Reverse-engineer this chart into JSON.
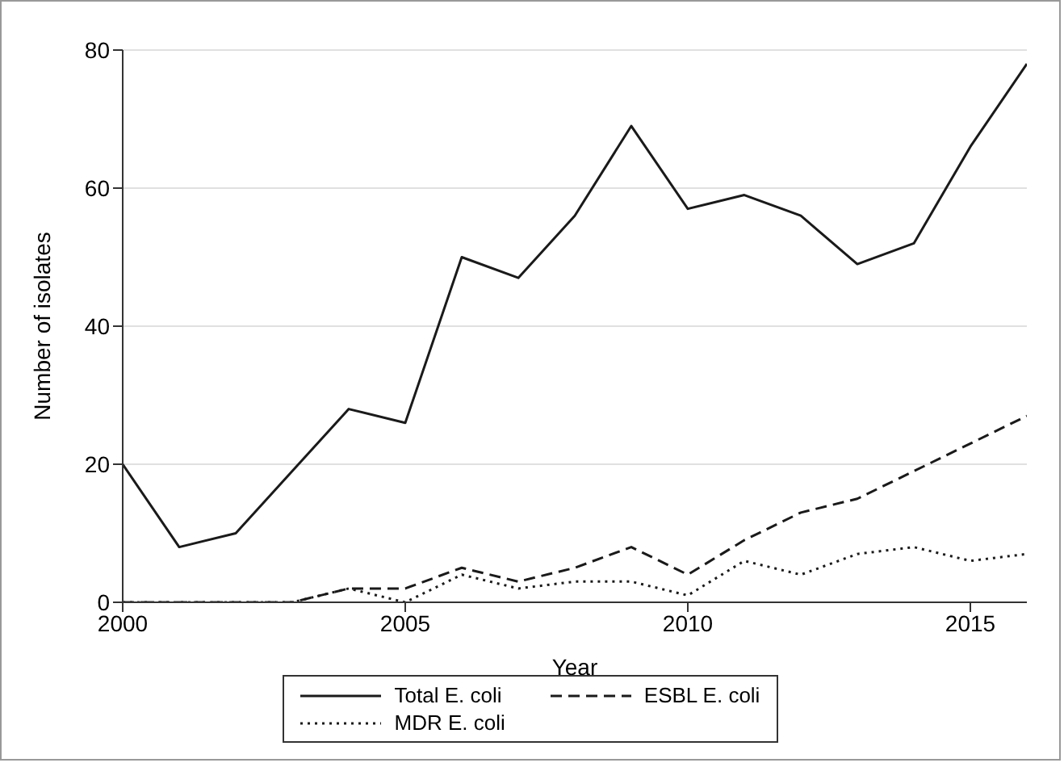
{
  "chart_data": {
    "type": "line",
    "xlabel": "Year",
    "ylabel": "Number of isolates",
    "x": [
      2000,
      2001,
      2002,
      2003,
      2004,
      2005,
      2006,
      2007,
      2008,
      2009,
      2010,
      2011,
      2012,
      2013,
      2014,
      2015,
      2016
    ],
    "xlim": [
      2000,
      2016
    ],
    "xticks": [
      2000,
      2005,
      2010,
      2015
    ],
    "ylim": [
      0,
      80
    ],
    "yticks": [
      0,
      20,
      40,
      60,
      80
    ],
    "grid": "y",
    "legend": "bottom",
    "marker": "none",
    "series": [
      {
        "name": "Total E. coli",
        "color": "#1a1a1a",
        "line_style": "solid",
        "values": [
          20,
          8,
          10,
          19,
          28,
          26,
          50,
          47,
          56,
          69,
          57,
          59,
          56,
          49,
          52,
          66,
          78
        ]
      },
      {
        "name": "ESBL E. coli",
        "color": "#1a1a1a",
        "line_style": "dashed",
        "values": [
          0,
          0,
          0,
          0,
          2,
          2,
          5,
          3,
          5,
          8,
          4,
          9,
          13,
          15,
          19,
          23,
          27
        ]
      },
      {
        "name": "MDR E. coli",
        "color": "#1a1a1a",
        "line_style": "dotted",
        "values": [
          0,
          0,
          0,
          0,
          2,
          0,
          4,
          2,
          3,
          3,
          1,
          6,
          4,
          7,
          8,
          6,
          7
        ]
      }
    ]
  }
}
